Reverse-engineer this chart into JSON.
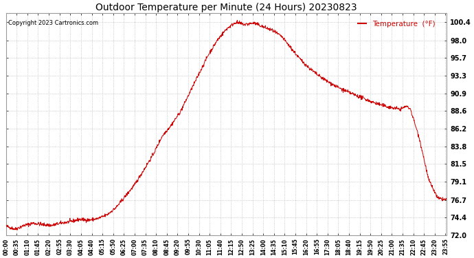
{
  "title": "Outdoor Temperature per Minute (24 Hours) 20230823",
  "copyright_text": "Copyright 2023 Cartronics.com",
  "legend_label": "Temperature  (°F)",
  "line_color": "#cc0000",
  "background_color": "#ffffff",
  "grid_color": "#bbbbbb",
  "ylim": [
    72.0,
    101.6
  ],
  "yticks": [
    72.0,
    74.4,
    76.7,
    79.1,
    81.5,
    83.8,
    86.2,
    88.6,
    90.9,
    93.3,
    95.7,
    98.0,
    100.4
  ],
  "xtick_labels": [
    "00:00",
    "00:35",
    "01:10",
    "01:45",
    "02:20",
    "02:55",
    "03:30",
    "04:05",
    "04:40",
    "05:15",
    "05:50",
    "06:25",
    "07:00",
    "07:35",
    "08:10",
    "08:45",
    "09:20",
    "09:55",
    "10:30",
    "11:05",
    "11:40",
    "12:15",
    "12:50",
    "13:25",
    "14:00",
    "14:35",
    "15:10",
    "15:45",
    "16:20",
    "16:55",
    "17:30",
    "18:05",
    "18:40",
    "19:15",
    "19:50",
    "20:25",
    "21:00",
    "21:35",
    "22:10",
    "22:45",
    "23:20",
    "23:55"
  ],
  "figsize": [
    6.9,
    3.75
  ],
  "dpi": 100
}
